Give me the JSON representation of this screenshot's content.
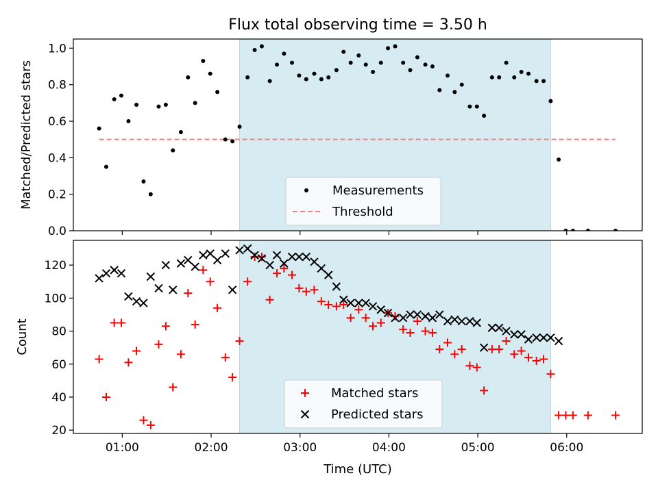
{
  "title": "Flux total observing time = 3.50 h",
  "xlabel": "Time (UTC)",
  "colors": {
    "band": "#add8e6",
    "measurements": "#000000",
    "threshold": "#f08080",
    "matched": "#ff0000",
    "predicted": "#000000"
  },
  "chart_data": [
    {
      "type": "scatter",
      "ylabel": "Matched/Predicted stars",
      "xlabel": "",
      "x_unit": "hours UTC",
      "xlim": [
        0.45,
        6.85
      ],
      "ylim": [
        0.0,
        1.05
      ],
      "xticks": [
        {
          "value": 1,
          "label": "01:00"
        },
        {
          "value": 2,
          "label": "02:00"
        },
        {
          "value": 3,
          "label": "03:00"
        },
        {
          "value": 4,
          "label": "04:00"
        },
        {
          "value": 5,
          "label": "05:00"
        },
        {
          "value": 6,
          "label": "06:00"
        }
      ],
      "yticks": [
        0.0,
        0.2,
        0.4,
        0.6,
        0.8,
        1.0
      ],
      "ytick_labels": [
        "0.0",
        "0.2",
        "0.4",
        "0.6",
        "0.8",
        "1.0"
      ],
      "shaded_span": [
        2.32,
        5.82
      ],
      "legend": {
        "position": "lower center",
        "entries": [
          "Measurements",
          "Threshold"
        ]
      },
      "threshold": {
        "name": "Threshold",
        "y": 0.5,
        "x": [
          0.74,
          6.55
        ]
      },
      "series": [
        {
          "name": "Measurements",
          "points": [
            [
              0.74,
              0.56
            ],
            [
              0.82,
              0.35
            ],
            [
              0.91,
              0.72
            ],
            [
              0.99,
              0.74
            ],
            [
              1.07,
              0.6
            ],
            [
              1.16,
              0.69
            ],
            [
              1.24,
              0.27
            ],
            [
              1.32,
              0.2
            ],
            [
              1.41,
              0.68
            ],
            [
              1.49,
              0.69
            ],
            [
              1.57,
              0.44
            ],
            [
              1.66,
              0.54
            ],
            [
              1.74,
              0.84
            ],
            [
              1.82,
              0.7
            ],
            [
              1.91,
              0.93
            ],
            [
              1.99,
              0.86
            ],
            [
              2.07,
              0.76
            ],
            [
              2.16,
              0.5
            ],
            [
              2.24,
              0.49
            ],
            [
              2.32,
              0.57
            ],
            [
              2.41,
              0.84
            ],
            [
              2.49,
              0.99
            ],
            [
              2.57,
              1.01
            ],
            [
              2.66,
              0.82
            ],
            [
              2.74,
              0.91
            ],
            [
              2.82,
              0.97
            ],
            [
              2.91,
              0.92
            ],
            [
              2.99,
              0.85
            ],
            [
              3.07,
              0.83
            ],
            [
              3.16,
              0.86
            ],
            [
              3.24,
              0.83
            ],
            [
              3.32,
              0.84
            ],
            [
              3.41,
              0.88
            ],
            [
              3.49,
              0.98
            ],
            [
              3.57,
              0.92
            ],
            [
              3.66,
              0.96
            ],
            [
              3.74,
              0.91
            ],
            [
              3.82,
              0.87
            ],
            [
              3.91,
              0.92
            ],
            [
              3.99,
              1.0
            ],
            [
              4.07,
              1.01
            ],
            [
              4.16,
              0.92
            ],
            [
              4.24,
              0.88
            ],
            [
              4.32,
              0.95
            ],
            [
              4.41,
              0.91
            ],
            [
              4.49,
              0.9
            ],
            [
              4.57,
              0.77
            ],
            [
              4.66,
              0.85
            ],
            [
              4.74,
              0.76
            ],
            [
              4.82,
              0.8
            ],
            [
              4.91,
              0.68
            ],
            [
              4.99,
              0.68
            ],
            [
              5.07,
              0.63
            ],
            [
              5.16,
              0.84
            ],
            [
              5.24,
              0.84
            ],
            [
              5.32,
              0.92
            ],
            [
              5.41,
              0.84
            ],
            [
              5.49,
              0.87
            ],
            [
              5.57,
              0.86
            ],
            [
              5.66,
              0.82
            ],
            [
              5.74,
              0.82
            ],
            [
              5.82,
              0.71
            ],
            [
              5.91,
              0.39
            ],
            [
              5.99,
              0.0
            ],
            [
              6.07,
              0.0
            ],
            [
              6.24,
              0.0
            ],
            [
              6.55,
              0.0
            ]
          ]
        }
      ]
    },
    {
      "type": "scatter",
      "ylabel": "Count",
      "xlabel": "Time (UTC)",
      "x_unit": "hours UTC",
      "xlim": [
        0.45,
        6.85
      ],
      "ylim": [
        18,
        135
      ],
      "xticks": [
        {
          "value": 1,
          "label": "01:00"
        },
        {
          "value": 2,
          "label": "02:00"
        },
        {
          "value": 3,
          "label": "03:00"
        },
        {
          "value": 4,
          "label": "04:00"
        },
        {
          "value": 5,
          "label": "05:00"
        },
        {
          "value": 6,
          "label": "06:00"
        }
      ],
      "yticks": [
        20,
        40,
        60,
        80,
        100,
        120
      ],
      "ytick_labels": [
        "20",
        "40",
        "60",
        "80",
        "100",
        "120"
      ],
      "shaded_span": [
        2.32,
        5.82
      ],
      "legend": {
        "position": "lower center",
        "entries": [
          "Matched stars",
          "Predicted stars"
        ]
      },
      "series": [
        {
          "name": "Matched stars",
          "marker": "plus",
          "points": [
            [
              0.74,
              63
            ],
            [
              0.82,
              40
            ],
            [
              0.91,
              85
            ],
            [
              0.99,
              85
            ],
            [
              1.07,
              61
            ],
            [
              1.16,
              68
            ],
            [
              1.24,
              26
            ],
            [
              1.32,
              23
            ],
            [
              1.41,
              72
            ],
            [
              1.49,
              83
            ],
            [
              1.57,
              46
            ],
            [
              1.66,
              66
            ],
            [
              1.74,
              103
            ],
            [
              1.82,
              84
            ],
            [
              1.91,
              117
            ],
            [
              1.99,
              110
            ],
            [
              2.07,
              94
            ],
            [
              2.16,
              64
            ],
            [
              2.24,
              52
            ],
            [
              2.32,
              74
            ],
            [
              2.41,
              110
            ],
            [
              2.49,
              125
            ],
            [
              2.57,
              125
            ],
            [
              2.66,
              99
            ],
            [
              2.74,
              115
            ],
            [
              2.82,
              118
            ],
            [
              2.91,
              114
            ],
            [
              2.99,
              106
            ],
            [
              3.07,
              104
            ],
            [
              3.16,
              105
            ],
            [
              3.24,
              98
            ],
            [
              3.32,
              96
            ],
            [
              3.41,
              95
            ],
            [
              3.49,
              96
            ],
            [
              3.57,
              88
            ],
            [
              3.66,
              93
            ],
            [
              3.74,
              88
            ],
            [
              3.82,
              83
            ],
            [
              3.91,
              85
            ],
            [
              3.99,
              91
            ],
            [
              4.07,
              89
            ],
            [
              4.16,
              81
            ],
            [
              4.24,
              79
            ],
            [
              4.32,
              86
            ],
            [
              4.41,
              80
            ],
            [
              4.49,
              79
            ],
            [
              4.57,
              69
            ],
            [
              4.66,
              73
            ],
            [
              4.74,
              66
            ],
            [
              4.82,
              69
            ],
            [
              4.91,
              59
            ],
            [
              4.99,
              58
            ],
            [
              5.07,
              44
            ],
            [
              5.16,
              69
            ],
            [
              5.24,
              69
            ],
            [
              5.32,
              74
            ],
            [
              5.41,
              66
            ],
            [
              5.49,
              68
            ],
            [
              5.57,
              64
            ],
            [
              5.66,
              62
            ],
            [
              5.74,
              63
            ],
            [
              5.82,
              54
            ],
            [
              5.91,
              29
            ],
            [
              5.99,
              29
            ],
            [
              6.07,
              29
            ],
            [
              6.24,
              29
            ],
            [
              6.55,
              29
            ]
          ]
        },
        {
          "name": "Predicted stars",
          "marker": "x",
          "points": [
            [
              0.74,
              112
            ],
            [
              0.82,
              115
            ],
            [
              0.91,
              117
            ],
            [
              0.99,
              115
            ],
            [
              1.07,
              101
            ],
            [
              1.16,
              98
            ],
            [
              1.24,
              97
            ],
            [
              1.32,
              113
            ],
            [
              1.41,
              106
            ],
            [
              1.49,
              120
            ],
            [
              1.57,
              105
            ],
            [
              1.66,
              121
            ],
            [
              1.74,
              123
            ],
            [
              1.82,
              119
            ],
            [
              1.91,
              126
            ],
            [
              1.99,
              127
            ],
            [
              2.07,
              123
            ],
            [
              2.16,
              127
            ],
            [
              2.24,
              105
            ],
            [
              2.32,
              129
            ],
            [
              2.41,
              130
            ],
            [
              2.49,
              126
            ],
            [
              2.57,
              124
            ],
            [
              2.66,
              120
            ],
            [
              2.74,
              126
            ],
            [
              2.82,
              121
            ],
            [
              2.91,
              125
            ],
            [
              2.99,
              125
            ],
            [
              3.07,
              125
            ],
            [
              3.16,
              122
            ],
            [
              3.24,
              118
            ],
            [
              3.32,
              114
            ],
            [
              3.41,
              107
            ],
            [
              3.49,
              99
            ],
            [
              3.57,
              97
            ],
            [
              3.66,
              97
            ],
            [
              3.74,
              97
            ],
            [
              3.82,
              95
            ],
            [
              3.91,
              93
            ],
            [
              3.99,
              91
            ],
            [
              4.07,
              88
            ],
            [
              4.16,
              88
            ],
            [
              4.24,
              90
            ],
            [
              4.32,
              90
            ],
            [
              4.41,
              89
            ],
            [
              4.49,
              88
            ],
            [
              4.57,
              90
            ],
            [
              4.66,
              86
            ],
            [
              4.74,
              87
            ],
            [
              4.82,
              86
            ],
            [
              4.91,
              86
            ],
            [
              4.99,
              85
            ],
            [
              5.07,
              70
            ],
            [
              5.16,
              82
            ],
            [
              5.24,
              82
            ],
            [
              5.32,
              80
            ],
            [
              5.41,
              78
            ],
            [
              5.49,
              78
            ],
            [
              5.57,
              75
            ],
            [
              5.66,
              76
            ],
            [
              5.74,
              76
            ],
            [
              5.82,
              76
            ],
            [
              5.91,
              74
            ]
          ]
        }
      ]
    }
  ]
}
